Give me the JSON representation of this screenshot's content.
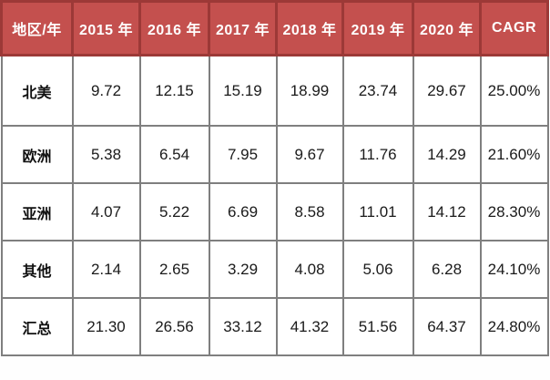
{
  "chart_data": {
    "type": "table",
    "columns": [
      "地区/年",
      "2015 年",
      "2016 年",
      "2017 年",
      "2018 年",
      "2019 年",
      "2020 年",
      "CAGR"
    ],
    "rows": [
      {
        "region": "北美",
        "values": [
          "9.72",
          "12.15",
          "15.19",
          "18.99",
          "23.74",
          "29.67",
          "25.00%"
        ]
      },
      {
        "region": "欧洲",
        "values": [
          "5.38",
          "6.54",
          "7.95",
          "9.67",
          "11.76",
          "14.29",
          "21.60%"
        ]
      },
      {
        "region": "亚洲",
        "values": [
          "4.07",
          "5.22",
          "6.69",
          "8.58",
          "11.01",
          "14.12",
          "28.30%"
        ]
      },
      {
        "region": "其他",
        "values": [
          "2.14",
          "2.65",
          "3.29",
          "4.08",
          "5.06",
          "6.28",
          "24.10%"
        ]
      },
      {
        "region": "汇总",
        "values": [
          "21.30",
          "26.56",
          "33.12",
          "41.32",
          "51.56",
          "64.37",
          "24.80%"
        ]
      }
    ],
    "colors": {
      "header_background": "#C4504E",
      "header_border": "#9C3937",
      "header_text": "#FFFFFF",
      "body_border": "#7F7F7F",
      "body_text": "#1A1A1A",
      "body_background": "#FFFFFF"
    },
    "layout": {
      "header_position": "top",
      "first_column_bold": true,
      "grid": true
    }
  }
}
